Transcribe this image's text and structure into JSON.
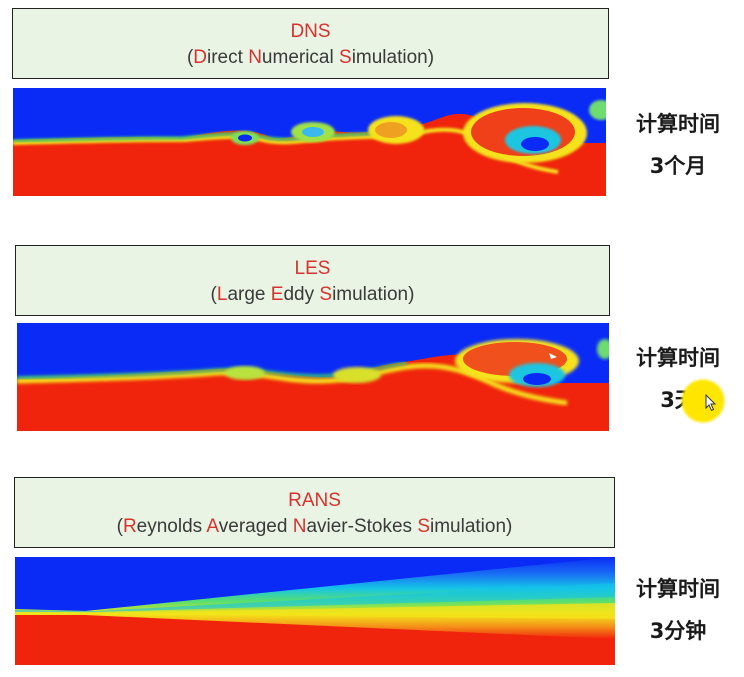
{
  "panels": [
    {
      "abbr": "DNS",
      "full": [
        {
          "t": "(",
          "h": false
        },
        {
          "t": "D",
          "h": true
        },
        {
          "t": "irect ",
          "h": false
        },
        {
          "t": "N",
          "h": true
        },
        {
          "t": "umerical ",
          "h": false
        },
        {
          "t": "S",
          "h": true
        },
        {
          "t": "imulation)",
          "h": false
        }
      ],
      "time_label": "计算时间",
      "time_value": "3个月"
    },
    {
      "abbr": "LES",
      "full": [
        {
          "t": "(",
          "h": false
        },
        {
          "t": "L",
          "h": true
        },
        {
          "t": "arge ",
          "h": false
        },
        {
          "t": "E",
          "h": true
        },
        {
          "t": "ddy ",
          "h": false
        },
        {
          "t": "S",
          "h": true
        },
        {
          "t": "imulation)",
          "h": false
        }
      ],
      "time_label": "计算时间",
      "time_value": "3天"
    },
    {
      "abbr": "RANS",
      "full": [
        {
          "t": "(",
          "h": false
        },
        {
          "t": "R",
          "h": true
        },
        {
          "t": "eynolds ",
          "h": false
        },
        {
          "t": "A",
          "h": true
        },
        {
          "t": "veraged ",
          "h": false
        },
        {
          "t": "N",
          "h": true
        },
        {
          "t": "avier-Stokes ",
          "h": false
        },
        {
          "t": "S",
          "h": true
        },
        {
          "t": "imulation)",
          "h": false
        }
      ],
      "time_label": "计算时间",
      "time_value": "3分钟"
    }
  ],
  "colors": {
    "highlight": "#d8322e",
    "box_bg": "#eaf4e4",
    "cold": "#0a2bf5",
    "hot": "#f0240c"
  }
}
